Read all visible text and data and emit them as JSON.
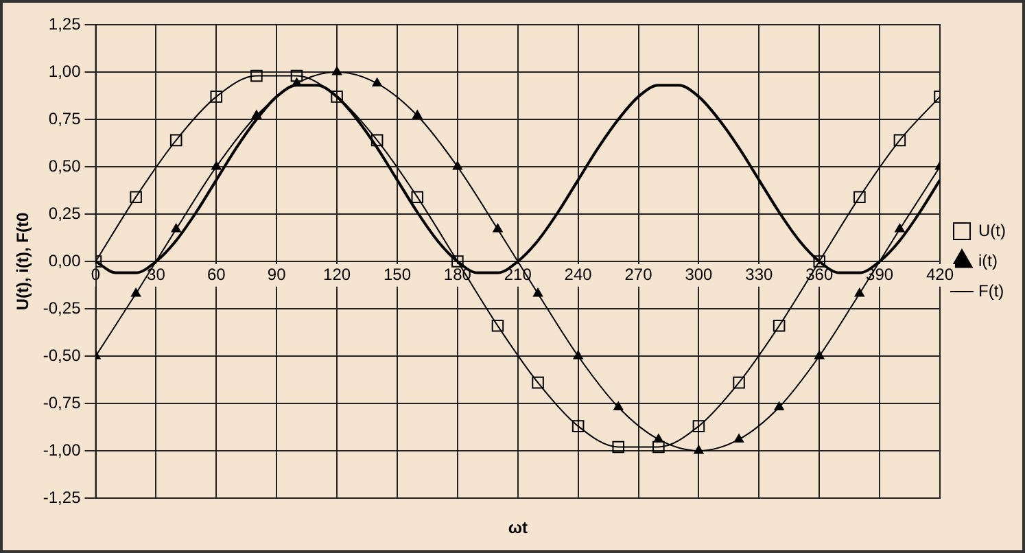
{
  "chart_data": {
    "type": "line",
    "xlabel": "ωt",
    "ylabel": "U(t), i(t), F(t0",
    "xlim": [
      0,
      420
    ],
    "xticks": [
      0,
      30,
      60,
      90,
      120,
      150,
      180,
      210,
      240,
      270,
      300,
      330,
      360,
      390,
      420
    ],
    "ylim": [
      -1.25,
      1.25
    ],
    "yticks": [
      {
        "value": -1.25,
        "label": "-1,25"
      },
      {
        "value": -1,
        "label": "-1,00"
      },
      {
        "value": -0.75,
        "label": "-0,75"
      },
      {
        "value": -0.5,
        "label": "-0,50"
      },
      {
        "value": -0.25,
        "label": "-0,25"
      },
      {
        "value": 0,
        "label": "0,00"
      },
      {
        "value": 0.25,
        "label": "0,25"
      },
      {
        "value": 0.5,
        "label": "0,50"
      },
      {
        "value": 0.75,
        "label": "0,75"
      },
      {
        "value": 1,
        "label": "1,00"
      },
      {
        "value": 1.25,
        "label": "1,25"
      }
    ],
    "grid": true,
    "legend": "right",
    "series": [
      {
        "name": "U(t)",
        "color": "#000000",
        "marker": "square",
        "x": [
          0,
          20,
          40,
          60,
          80,
          100,
          120,
          140,
          160,
          180,
          200,
          220,
          240,
          260,
          280,
          300,
          320,
          340,
          360,
          380,
          400,
          420
        ],
        "values": [
          0,
          0.34,
          0.64,
          0.87,
          0.98,
          0.98,
          0.87,
          0.64,
          0.34,
          0,
          -0.34,
          -0.64,
          -0.87,
          -0.98,
          -0.98,
          -0.87,
          -0.64,
          -0.34,
          0,
          0.34,
          0.64,
          0.87
        ]
      },
      {
        "name": "i(t)",
        "color": "#000000",
        "marker": "triangle",
        "x": [
          0,
          20,
          40,
          60,
          80,
          100,
          120,
          140,
          160,
          180,
          200,
          220,
          240,
          260,
          280,
          300,
          320,
          340,
          360,
          380,
          400,
          420
        ],
        "values": [
          -0.5,
          -0.17,
          0.17,
          0.5,
          0.77,
          0.94,
          1,
          0.94,
          0.77,
          0.5,
          0.17,
          -0.17,
          -0.5,
          -0.77,
          -0.94,
          -1,
          -0.94,
          -0.77,
          -0.5,
          -0.17,
          0.17,
          0.5
        ]
      },
      {
        "name": "F(t)",
        "color": "#000000",
        "marker": "none",
        "x": [
          0,
          10,
          20,
          30,
          40,
          50,
          60,
          70,
          80,
          90,
          100,
          110,
          120,
          130,
          140,
          150,
          160,
          170,
          180,
          190,
          200,
          210,
          220,
          230,
          240,
          250,
          260,
          270,
          280,
          290,
          300,
          310,
          320,
          330,
          340,
          350,
          360,
          370,
          380,
          390,
          400,
          410,
          420
        ],
        "values": [
          0,
          -0.06,
          -0.06,
          0,
          0.11,
          0.26,
          0.43,
          0.6,
          0.75,
          0.87,
          0.93,
          0.93,
          0.87,
          0.75,
          0.6,
          0.43,
          0.26,
          0.11,
          0,
          -0.06,
          -0.06,
          0,
          0.11,
          0.26,
          0.43,
          0.6,
          0.75,
          0.87,
          0.93,
          0.93,
          0.87,
          0.75,
          0.6,
          0.43,
          0.26,
          0.11,
          0,
          -0.06,
          -0.06,
          0,
          0.11,
          0.26,
          0.43
        ]
      }
    ]
  }
}
